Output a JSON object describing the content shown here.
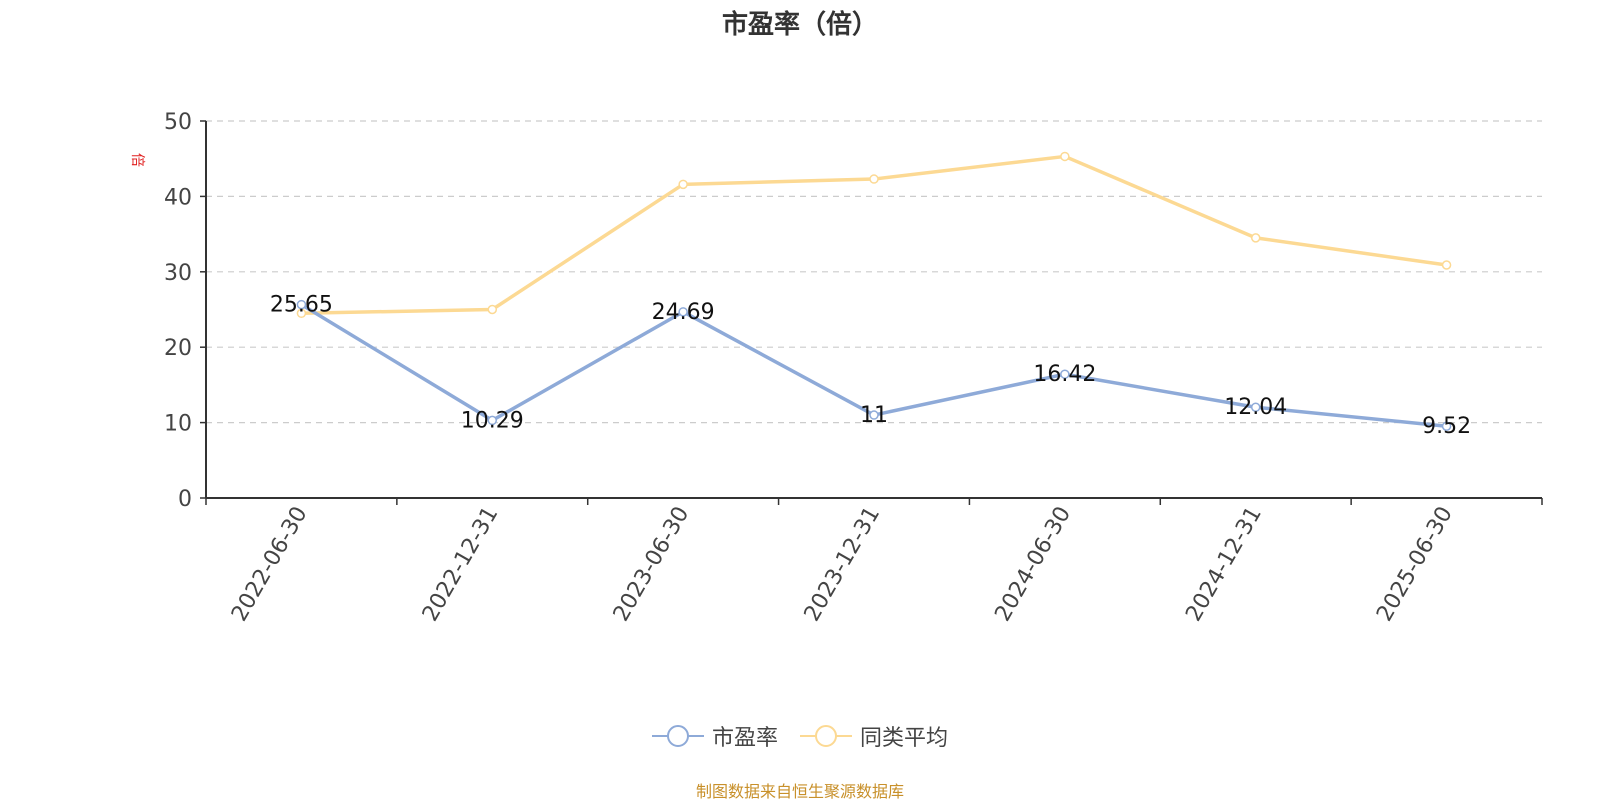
{
  "chart_data": {
    "type": "line",
    "title": "市盈率（倍）",
    "ylabel": "倍",
    "xlabel": "",
    "categories": [
      "2022-06-30",
      "2022-12-31",
      "2023-06-30",
      "2023-12-31",
      "2024-06-30",
      "2024-12-31",
      "2025-06-30"
    ],
    "ylim": [
      0,
      50
    ],
    "yticks": [
      0,
      10,
      20,
      30,
      40,
      50
    ],
    "grid": true,
    "legend_position": "bottom",
    "series": [
      {
        "name": "市盈率",
        "values": [
          25.65,
          10.29,
          24.69,
          11,
          16.42,
          12.04,
          9.52
        ],
        "data_labels": [
          "25.65",
          "10.29",
          "24.69",
          "11",
          "16.42",
          "12.04",
          "9.52"
        ],
        "color": "#8eaad8"
      },
      {
        "name": "同类平均",
        "values": [
          24.5,
          25.0,
          41.6,
          42.3,
          45.3,
          34.5,
          30.9
        ],
        "color": "#fcd993"
      }
    ]
  },
  "source_text": "制图数据来自恒生聚源数据库",
  "colors": {
    "axis": "#333333",
    "grid": "#cccccc",
    "source": "#c8902a",
    "unit": "#e02020"
  }
}
